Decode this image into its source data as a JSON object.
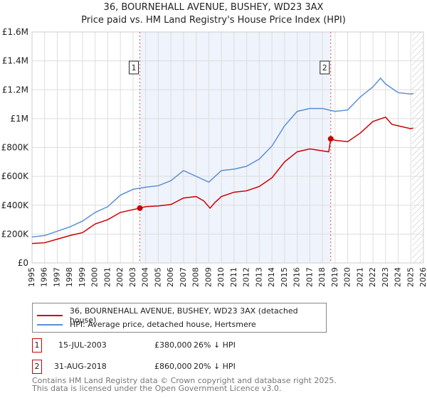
{
  "chart_data": {
    "type": "line",
    "title": "36, BOURNEHALL AVENUE, BUSHEY, WD23 3AX",
    "subtitle": "Price paid vs. HM Land Registry's House Price Index (HPI)",
    "xlim": [
      1995,
      2026
    ],
    "ylim": [
      0,
      1600000
    ],
    "x_ticks": [
      "1995",
      "1996",
      "1997",
      "1998",
      "1999",
      "2000",
      "2001",
      "2002",
      "2003",
      "2004",
      "2005",
      "2006",
      "2007",
      "2008",
      "2009",
      "2010",
      "2011",
      "2012",
      "2013",
      "2014",
      "2015",
      "2016",
      "2017",
      "2018",
      "2019",
      "2020",
      "2021",
      "2022",
      "2023",
      "2024",
      "2025",
      "2026"
    ],
    "y_ticks": [
      {
        "v": 0,
        "l": "£0"
      },
      {
        "v": 200000,
        "l": "£200K"
      },
      {
        "v": 400000,
        "l": "£400K"
      },
      {
        "v": 600000,
        "l": "£600K"
      },
      {
        "v": 800000,
        "l": "£800K"
      },
      {
        "v": 1000000,
        "l": "£1M"
      },
      {
        "v": 1200000,
        "l": "£1.2M"
      },
      {
        "v": 1400000,
        "l": "£1.4M"
      },
      {
        "v": 1600000,
        "l": "£1.6M"
      }
    ],
    "series": [
      {
        "name": "36, BOURNEHALL AVENUE, BUSHEY, WD23 3AX (detached house)",
        "color": "#cc0000",
        "x": [
          1995,
          1996,
          1997,
          1998,
          1999,
          2000,
          2001,
          2002,
          2003.54,
          2004,
          2005,
          2006,
          2007,
          2008,
          2008.6,
          2009.1,
          2009.5,
          2010,
          2011,
          2012,
          2013,
          2014,
          2015,
          2016,
          2017,
          2018.5,
          2018.66,
          2019,
          2020,
          2021,
          2022,
          2023,
          2023.5,
          2024,
          2025,
          2025.2
        ],
        "y": [
          135000,
          140000,
          165000,
          190000,
          210000,
          270000,
          300000,
          350000,
          380000,
          390000,
          395000,
          405000,
          450000,
          460000,
          430000,
          380000,
          420000,
          460000,
          490000,
          500000,
          530000,
          590000,
          700000,
          770000,
          790000,
          770000,
          860000,
          850000,
          840000,
          900000,
          980000,
          1010000,
          960000,
          950000,
          930000,
          935000
        ]
      },
      {
        "name": "HPI: Average price, detached house, Hertsmere",
        "color": "#5b8fd4",
        "x": [
          1995,
          1996,
          1997,
          1998,
          1999,
          2000,
          2001,
          2002,
          2003,
          2004,
          2005,
          2006,
          2007,
          2008,
          2009,
          2010,
          2011,
          2012,
          2013,
          2014,
          2015,
          2016,
          2017,
          2018,
          2019,
          2020,
          2021,
          2022,
          2022.6,
          2023,
          2024,
          2025,
          2025.2
        ],
        "y": [
          180000,
          190000,
          220000,
          250000,
          290000,
          350000,
          390000,
          470000,
          510000,
          525000,
          535000,
          570000,
          640000,
          600000,
          560000,
          640000,
          650000,
          670000,
          720000,
          810000,
          950000,
          1050000,
          1070000,
          1070000,
          1050000,
          1060000,
          1150000,
          1220000,
          1280000,
          1240000,
          1180000,
          1170000,
          1175000
        ]
      }
    ],
    "sales": [
      {
        "label": "1",
        "x": 2003.54,
        "y": 380000,
        "date": "15-JUL-2003",
        "price": "£380,000",
        "hpi": "26% ↓ HPI"
      },
      {
        "label": "2",
        "x": 2018.66,
        "y": 860000,
        "date": "31-AUG-2018",
        "price": "£860,000",
        "hpi": "20% ↓ HPI"
      }
    ],
    "forecast_start": 2025.1
  },
  "footer": {
    "line1": "Contains HM Land Registry data © Crown copyright and database right 2025.",
    "line2": "This data is licensed under the Open Government Licence v3.0."
  }
}
